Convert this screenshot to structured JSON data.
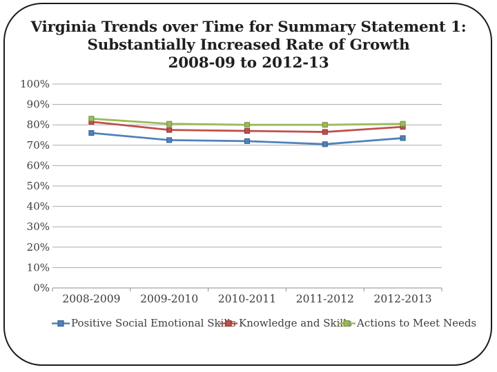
{
  "slide": {
    "title_lines": [
      "Virginia Trends over Time for Summary Statement 1:",
      "Substantially Increased Rate of Growth",
      "2008-09 to 2012-13"
    ]
  },
  "colors": {
    "background": "#ffffff",
    "frame_border": "#1a1a1a",
    "title_text": "#1f1f1f",
    "axis_label_text": "#3d3d3d",
    "gridline": "#aaaaaa",
    "axis_line": "#8c8c8c"
  },
  "chart_data": {
    "type": "line",
    "title": "Virginia Trends over Time for Summary Statement 1: Substantially Increased Rate of Growth 2008-09 to 2012-13",
    "categories": [
      "2008-2009",
      "2009-2010",
      "2010-2011",
      "2011-2012",
      "2012-2013"
    ],
    "series": [
      {
        "name": "Positive Social Emotional Skills",
        "color": "#4f81bd",
        "marker_edge": "#3a6191",
        "values": [
          76,
          72.5,
          72,
          70.5,
          73.5
        ]
      },
      {
        "name": "Knowledge and Skills",
        "color": "#c0504d",
        "marker_edge": "#943634",
        "values": [
          81.5,
          77.5,
          77,
          76.5,
          79
        ]
      },
      {
        "name": "Actions to Meet Needs",
        "color": "#9bbb59",
        "marker_edge": "#76923c",
        "values": [
          83,
          80.5,
          80,
          80,
          80.5
        ]
      }
    ],
    "xlabel": "",
    "ylabel": "",
    "ylim": [
      0,
      100
    ],
    "ytick_step": 10,
    "ytick_labels": [
      "0%",
      "10%",
      "20%",
      "30%",
      "40%",
      "50%",
      "60%",
      "70%",
      "80%",
      "90%",
      "100%"
    ],
    "grid": true,
    "gridlines": "horizontal-only",
    "legend_position": "bottom",
    "marker_shape": "square",
    "line_style": "solid"
  }
}
